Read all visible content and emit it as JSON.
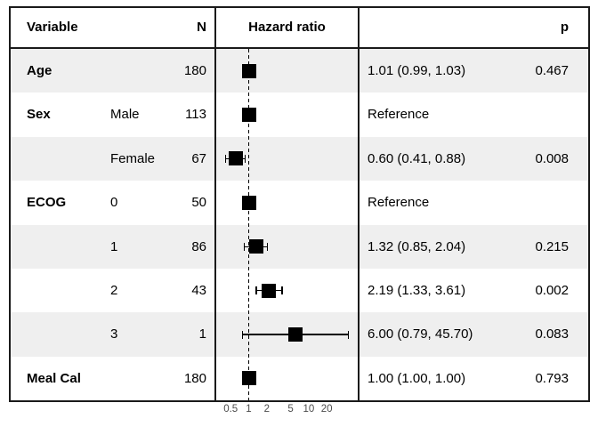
{
  "header": {
    "variable": "Variable",
    "n": "N",
    "plot": "Hazard ratio",
    "p": "p"
  },
  "rows": [
    {
      "variable": "Age",
      "level": "",
      "n": "180",
      "estimate": "1.01 (0.99, 1.03)",
      "p": "0.467",
      "hr": 1.01,
      "lo": 0.99,
      "hi": 1.03,
      "reference": false,
      "shaded": true
    },
    {
      "variable": "Sex",
      "level": "Male",
      "n": "113",
      "estimate": "Reference",
      "p": "",
      "hr": 1.0,
      "lo": null,
      "hi": null,
      "reference": true,
      "shaded": false
    },
    {
      "variable": "",
      "level": "Female",
      "n": "67",
      "estimate": "0.60 (0.41, 0.88)",
      "p": "0.008",
      "hr": 0.6,
      "lo": 0.41,
      "hi": 0.88,
      "reference": false,
      "shaded": true
    },
    {
      "variable": "ECOG",
      "level": "0",
      "n": "50",
      "estimate": "Reference",
      "p": "",
      "hr": 1.0,
      "lo": null,
      "hi": null,
      "reference": true,
      "shaded": false
    },
    {
      "variable": "",
      "level": "1",
      "n": "86",
      "estimate": "1.32 (0.85, 2.04)",
      "p": "0.215",
      "hr": 1.32,
      "lo": 0.85,
      "hi": 2.04,
      "reference": false,
      "shaded": true
    },
    {
      "variable": "",
      "level": "2",
      "n": "43",
      "estimate": "2.19 (1.33, 3.61)",
      "p": "0.002",
      "hr": 2.19,
      "lo": 1.33,
      "hi": 3.61,
      "reference": false,
      "shaded": false
    },
    {
      "variable": "",
      "level": "3",
      "n": "1",
      "estimate": "6.00 (0.79, 45.70)",
      "p": "0.083",
      "hr": 6.0,
      "lo": 0.79,
      "hi": 45.7,
      "reference": false,
      "shaded": true
    },
    {
      "variable": "Meal Cal",
      "level": "",
      "n": "180",
      "estimate": "1.00 (1.00, 1.00)",
      "p": "0.793",
      "hr": 1.0,
      "lo": 1.0,
      "hi": 1.0,
      "reference": false,
      "shaded": false
    }
  ],
  "axis": {
    "ticks": [
      "0.5",
      "1",
      "2",
      "5",
      "10",
      "20"
    ],
    "scale": "log10",
    "reference_value": 1
  },
  "colors": {
    "shaded_row": "#efefef",
    "border": "#1a1a1a",
    "marker": "#000000",
    "tick_label": "#4d4d4d",
    "background": "#ffffff"
  },
  "chart_data": {
    "type": "scatter",
    "subtype": "forest-plot",
    "title": "",
    "xlabel": "Hazard ratio",
    "x_scale": "log10",
    "x_ticks": [
      0.5,
      1,
      2,
      5,
      10,
      20
    ],
    "x_range": [
      0.35,
      60
    ],
    "reference_line": 1,
    "legend": "none",
    "rows": [
      {
        "variable": "Age",
        "level": null,
        "n": 180,
        "hr": 1.01,
        "ci_low": 0.99,
        "ci_high": 1.03,
        "p": 0.467,
        "reference": false
      },
      {
        "variable": "Sex",
        "level": "Male",
        "n": 113,
        "hr": 1.0,
        "ci_low": null,
        "ci_high": null,
        "p": null,
        "reference": true
      },
      {
        "variable": "Sex",
        "level": "Female",
        "n": 67,
        "hr": 0.6,
        "ci_low": 0.41,
        "ci_high": 0.88,
        "p": 0.008,
        "reference": false
      },
      {
        "variable": "ECOG",
        "level": "0",
        "n": 50,
        "hr": 1.0,
        "ci_low": null,
        "ci_high": null,
        "p": null,
        "reference": true
      },
      {
        "variable": "ECOG",
        "level": "1",
        "n": 86,
        "hr": 1.32,
        "ci_low": 0.85,
        "ci_high": 2.04,
        "p": 0.215,
        "reference": false
      },
      {
        "variable": "ECOG",
        "level": "2",
        "n": 43,
        "hr": 2.19,
        "ci_low": 1.33,
        "ci_high": 3.61,
        "p": 0.002,
        "reference": false
      },
      {
        "variable": "ECOG",
        "level": "3",
        "n": 1,
        "hr": 6.0,
        "ci_low": 0.79,
        "ci_high": 45.7,
        "p": 0.083,
        "reference": false
      },
      {
        "variable": "Meal Cal",
        "level": null,
        "n": 180,
        "hr": 1.0,
        "ci_low": 1.0,
        "ci_high": 1.0,
        "p": 0.793,
        "reference": false
      }
    ]
  }
}
